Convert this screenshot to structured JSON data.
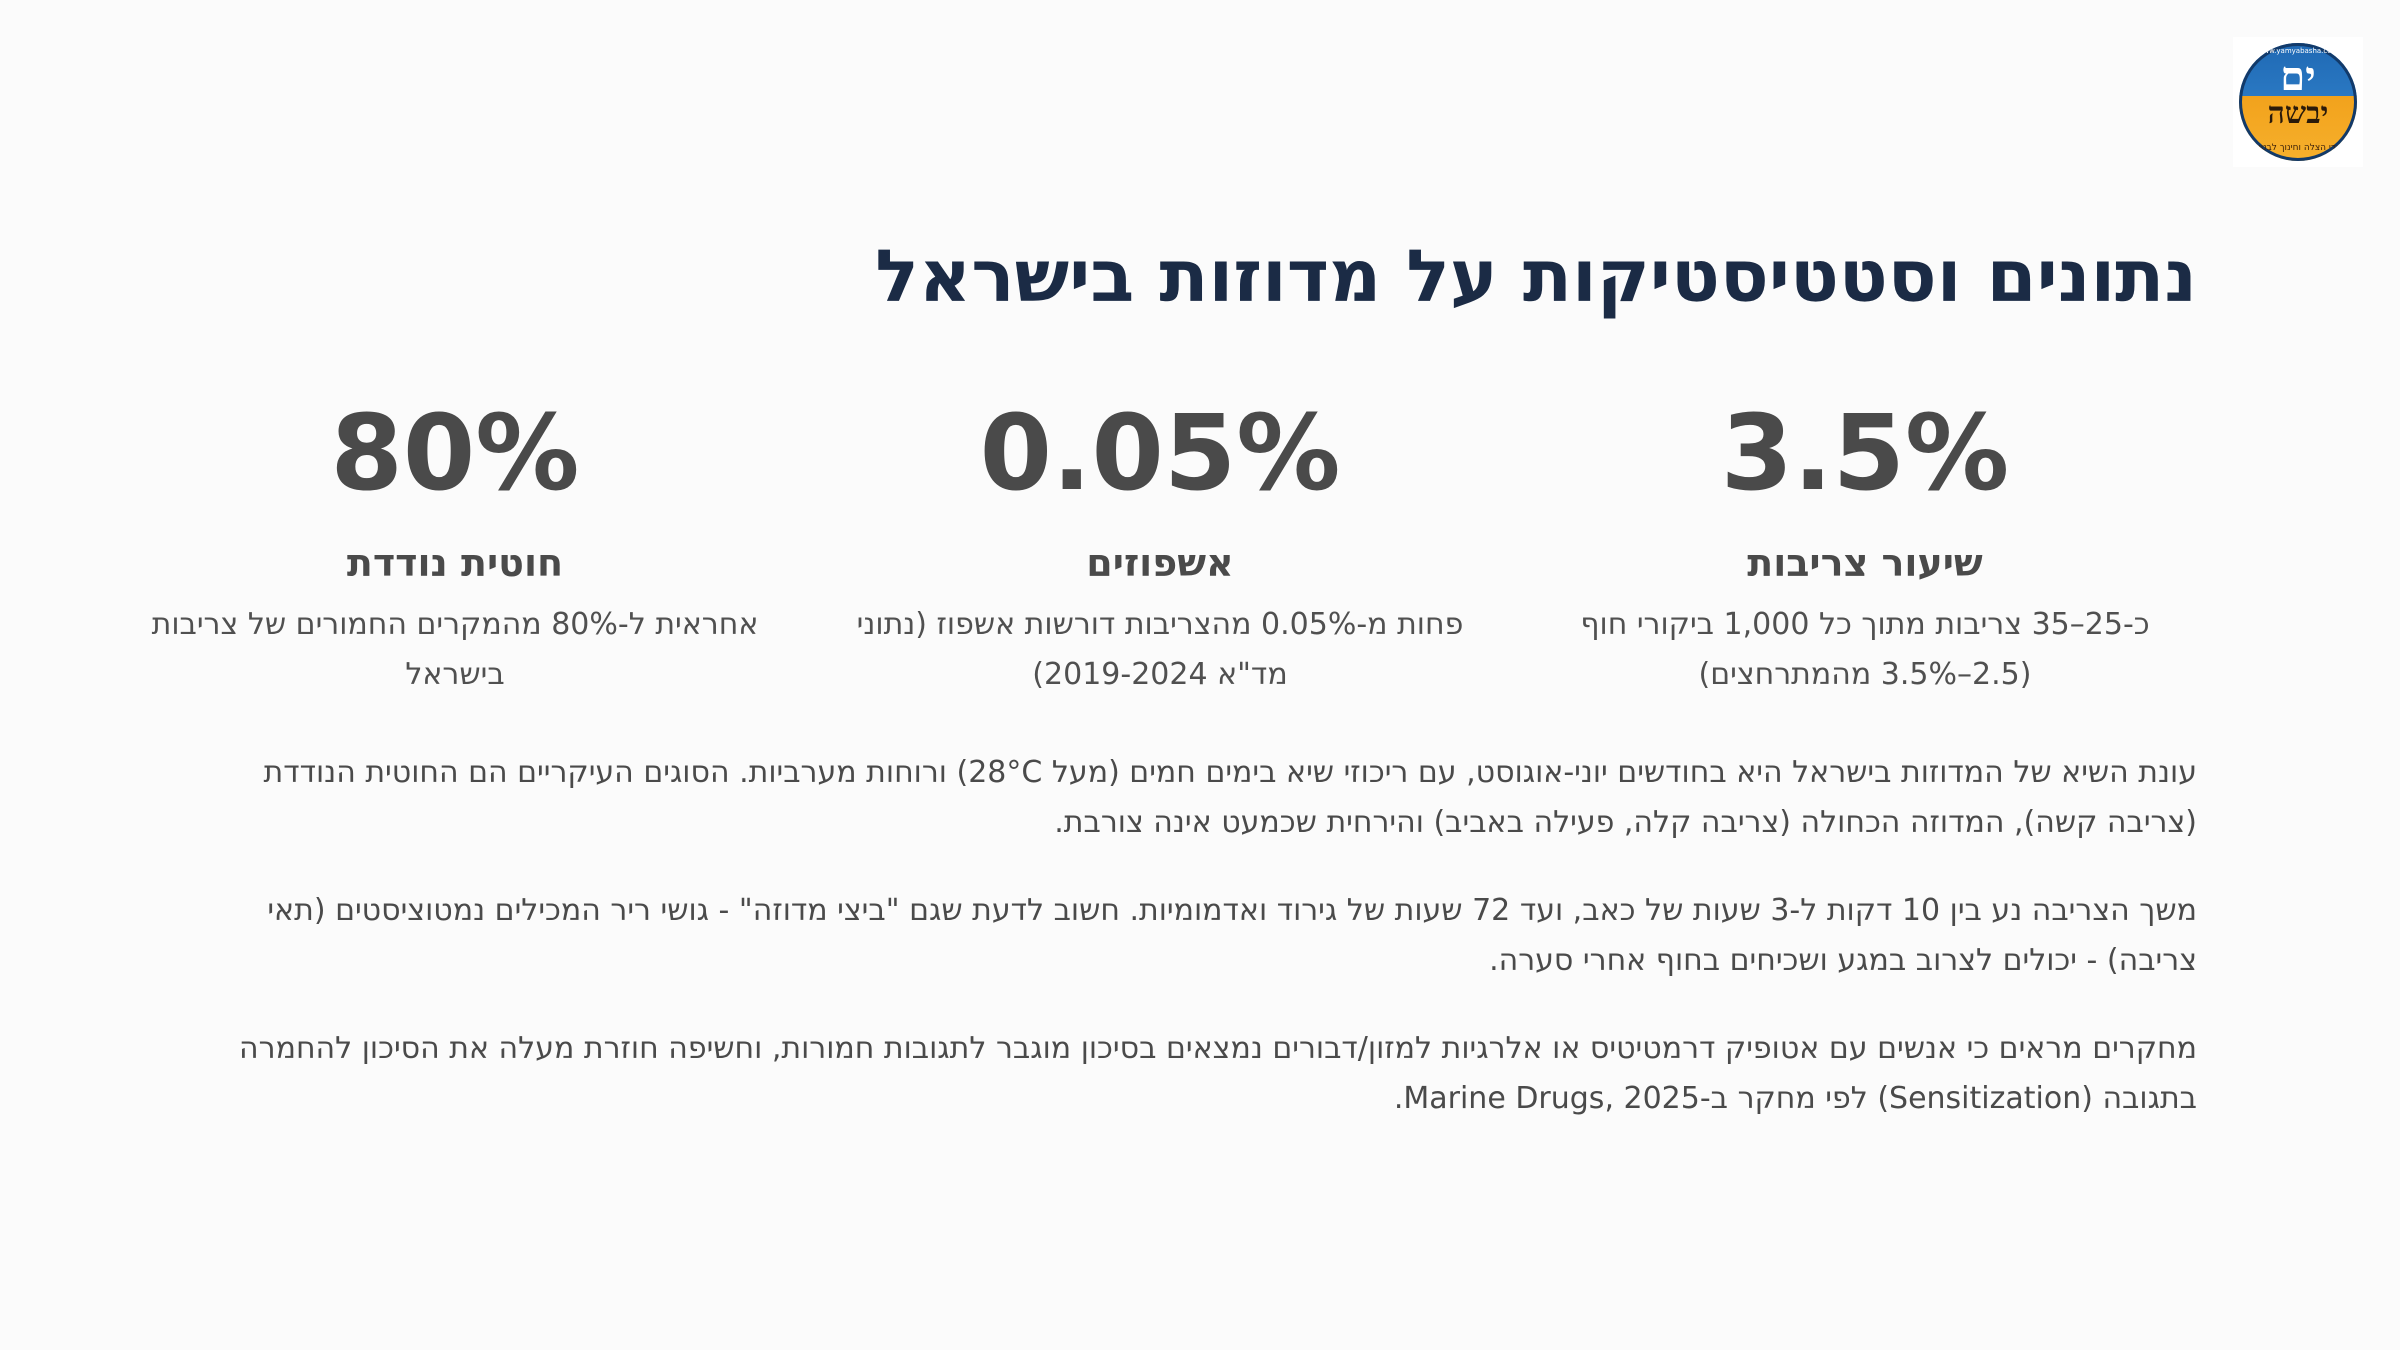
{
  "logo": {
    "letters": "ים",
    "word": "יבשה",
    "rim_text": "לימודי הצלה וחינוך לבטיחות",
    "url_text": "www.yamyabasha.com"
  },
  "title": "נתונים וסטטיסטיקות על מדוזות בישראל",
  "stats": [
    {
      "value": "3.5%",
      "label": "שיעור צריבות",
      "description": "כ-25–35 צריבות מתוך כל 1,000 ביקורי חוף (2.5–3.5% מהמתרחצים)"
    },
    {
      "value": "0.05%",
      "label": "אשפוזים",
      "description": "פחות מ-0.05% מהצריבות דורשות אשפוז (נתוני מד\"א 2019-2024)"
    },
    {
      "value": "80%",
      "label": "חוטית נודדת",
      "description": "אחראית ל-80% מהמקרים החמורים של צריבות בישראל"
    }
  ],
  "paragraphs": [
    "עונת השיא של המדוזות בישראל היא בחודשים יוני-אוגוסט, עם ריכוזי שיא בימים חמים (מעל 28°C) ורוחות מערביות. הסוגים העיקריים הם החוטית הנודדת (צריבה קשה), המדוזה הכחולה (צריבה קלה, פעילה באביב) והירחית שכמעט אינה צורבת.",
    "משך הצריבה נע בין 10 דקות ל-3 שעות של כאב, ועד 72 שעות של גירוד ואדמומיות. חשוב לדעת שגם \"ביצי מדוזה\" - גושי ריר המכילים נמטוציסטים (תאי צריבה) - יכולים לצרוב במגע ושכיחים בחוף אחרי סערה.",
    "מחקרים מראים כי אנשים עם אטופיק דרמטיטיס או אלרגיות למזון/דבורים נמצאים בסיכון מוגבר לתגובות חמורות, וחשיפה חוזרת מעלה את הסיכון להחמרה בתגובה (Sensitization) לפי מחקר ב-Marine Drugs, 2025."
  ],
  "colors": {
    "background": "#fbfbfb",
    "title": "#1b2b45",
    "stat_text": "#4a4a4a",
    "body_text": "#4a4a4a",
    "logo_blue": "#1f69b4",
    "logo_orange": "#f2a21c"
  }
}
